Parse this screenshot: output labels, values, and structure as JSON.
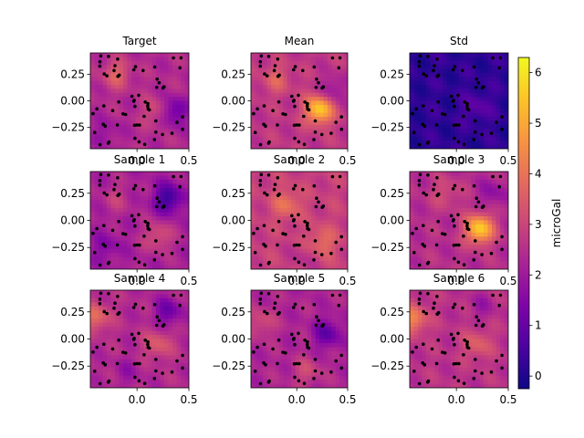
{
  "chart_data": {
    "type": "heatmap",
    "panel_titles": [
      "Target",
      "Mean",
      "Std",
      "Sample 1",
      "Sample 2",
      "Sample 3",
      "Sample 4",
      "Sample 5",
      "Sample 6"
    ],
    "xlim": [
      -0.45,
      0.5
    ],
    "ylim": [
      -0.45,
      0.45
    ],
    "x_ticks": [
      "0.0",
      "0.5"
    ],
    "y_ticks": [
      "0.25",
      "0.00",
      "−0.25"
    ],
    "colorbar": {
      "label": "microGal",
      "range": [
        -0.25,
        6.3
      ],
      "ticks": [
        "0",
        "1",
        "2",
        "3",
        "4",
        "5",
        "6"
      ],
      "colormap": "plasma"
    },
    "station_count_per_panel": 62,
    "panels": [
      {
        "title": "Target",
        "base": 2.4,
        "hotspots": [
          [
            -0.2,
            0.25,
            1.2
          ],
          [
            0.2,
            -0.1,
            1.0
          ],
          [
            0.35,
            -0.1,
            -1.6
          ],
          [
            -0.3,
            -0.3,
            -0.6
          ]
        ]
      },
      {
        "title": "Mean",
        "base": 2.7,
        "hotspots": [
          [
            0.22,
            -0.08,
            3.0
          ],
          [
            -0.2,
            0.2,
            0.9
          ],
          [
            0.35,
            0.1,
            -1.0
          ]
        ]
      },
      {
        "title": "Std",
        "base": 0.2,
        "hotspots": [
          [
            0.2,
            -0.06,
            0.7
          ]
        ]
      },
      {
        "title": "Sample 1",
        "base": 2.2,
        "hotspots": [
          [
            0.3,
            0.2,
            -1.9
          ],
          [
            -0.3,
            -0.25,
            -0.7
          ],
          [
            0.2,
            -0.15,
            1.1
          ],
          [
            -0.2,
            0.2,
            0.6
          ]
        ]
      },
      {
        "title": "Sample 2",
        "base": 2.9,
        "hotspots": [
          [
            -0.1,
            0.15,
            1.1
          ],
          [
            0.25,
            -0.2,
            1.0
          ],
          [
            0.05,
            -0.35,
            -0.4
          ]
        ]
      },
      {
        "title": "Sample 3",
        "base": 2.5,
        "hotspots": [
          [
            0.22,
            -0.08,
            3.2
          ],
          [
            -0.1,
            0.25,
            0.7
          ],
          [
            0.35,
            0.25,
            -0.8
          ]
        ]
      },
      {
        "title": "Sample 4",
        "base": 2.4,
        "hotspots": [
          [
            -0.4,
            0.2,
            1.5
          ],
          [
            0.2,
            -0.05,
            1.1
          ],
          [
            0.3,
            0.25,
            -1.3
          ],
          [
            -0.1,
            -0.3,
            -0.5
          ]
        ]
      },
      {
        "title": "Sample 5",
        "base": 2.3,
        "hotspots": [
          [
            -0.35,
            0.15,
            0.9
          ],
          [
            0.3,
            0.05,
            -1.4
          ],
          [
            0.1,
            -0.3,
            0.8
          ]
        ]
      },
      {
        "title": "Sample 6",
        "base": 2.6,
        "hotspots": [
          [
            -0.42,
            0.18,
            1.8
          ],
          [
            0.2,
            -0.05,
            1.0
          ],
          [
            0.25,
            0.3,
            -0.6
          ]
        ]
      }
    ]
  }
}
